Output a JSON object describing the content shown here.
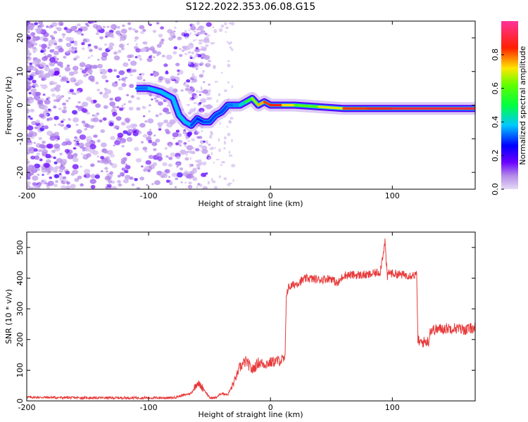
{
  "title": "S122.2022.353.06.08.G15",
  "chart_data": [
    {
      "type": "heatmap",
      "xlabel": "Height of straight line (km)",
      "ylabel": "Frequency (Hz)",
      "xlim": [
        -200,
        168
      ],
      "ylim": [
        -25,
        25
      ],
      "xticks": [
        -200,
        -100,
        0,
        100
      ],
      "yticks": [
        -20,
        -10,
        0,
        10,
        20
      ],
      "grid": false,
      "colorbar": {
        "label": "Normalized spectral amplitude",
        "range": [
          0,
          1
        ],
        "ticks": [
          0.0,
          0.2,
          0.4,
          0.6,
          0.8
        ],
        "colormap": "hsv (lavender-purple-blue-cyan-green-yellow-red-pink)"
      },
      "ridge": {
        "x": [
          -110,
          -100,
          -90,
          -80,
          -75,
          -70,
          -65,
          -60,
          -55,
          -50,
          -45,
          -40,
          -35,
          -30,
          -25,
          -20,
          -15,
          -10,
          -5,
          0,
          10,
          20,
          40,
          60,
          80,
          100,
          120,
          140,
          168
        ],
        "y": [
          5,
          5,
          4,
          2,
          -3,
          -5,
          -6,
          -4,
          -5,
          -5,
          -3,
          -2,
          0,
          0,
          0,
          1,
          2,
          0,
          1,
          0,
          0,
          0,
          -0.5,
          -1,
          -1,
          -1,
          -1,
          -1,
          -1
        ],
        "amplitude": [
          0.3,
          0.35,
          0.4,
          0.35,
          0.4,
          0.4,
          0.35,
          0.25,
          0.3,
          0.3,
          0.3,
          0.3,
          0.3,
          0.35,
          0.35,
          0.5,
          0.6,
          0.7,
          0.8,
          0.85,
          0.85,
          0.6,
          0.6,
          0.8,
          0.85,
          0.9,
          0.9,
          0.9,
          0.9
        ]
      }
    },
    {
      "type": "line",
      "xlabel": "Height of straight line (km)",
      "ylabel": "SNR (10 * v/v)",
      "xlim": [
        -200,
        168
      ],
      "ylim": [
        0,
        550
      ],
      "xticks": [
        -200,
        -100,
        0,
        100
      ],
      "yticks": [
        0,
        100,
        200,
        300,
        400,
        500
      ],
      "grid": false,
      "series": [
        {
          "color": "#e83a3a",
          "x": [
            -200,
            -150,
            -100,
            -80,
            -65,
            -60,
            -55,
            -50,
            -45,
            -40,
            -35,
            -30,
            -25,
            -20,
            -15,
            -10,
            -5,
            0,
            5,
            12,
            13,
            15,
            20,
            30,
            40,
            50,
            55,
            60,
            70,
            80,
            90,
            94,
            95,
            96,
            97,
            100,
            110,
            120,
            121,
            123,
            130,
            131,
            140,
            150,
            160,
            168
          ],
          "y": [
            12,
            10,
            10,
            10,
            25,
            60,
            40,
            10,
            10,
            25,
            20,
            60,
            110,
            130,
            100,
            125,
            120,
            125,
            130,
            135,
            350,
            370,
            380,
            400,
            395,
            400,
            380,
            410,
            410,
            410,
            420,
            520,
            450,
            400,
            420,
            415,
            410,
            410,
            195,
            190,
            195,
            230,
            235,
            238,
            232,
            240
          ]
        }
      ]
    }
  ]
}
